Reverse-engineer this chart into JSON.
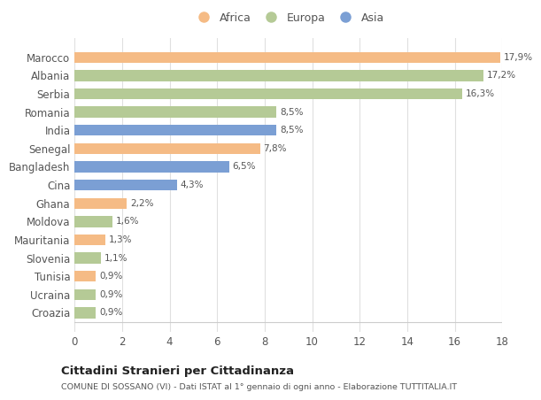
{
  "categories": [
    "Croazia",
    "Ucraina",
    "Tunisia",
    "Slovenia",
    "Mauritania",
    "Moldova",
    "Ghana",
    "Cina",
    "Bangladesh",
    "Senegal",
    "India",
    "Romania",
    "Serbia",
    "Albania",
    "Marocco"
  ],
  "values": [
    0.9,
    0.9,
    0.9,
    1.1,
    1.3,
    1.6,
    2.2,
    4.3,
    6.5,
    7.8,
    8.5,
    8.5,
    16.3,
    17.2,
    17.9
  ],
  "colors": [
    "#b5ca96",
    "#b5ca96",
    "#f5bb85",
    "#b5ca96",
    "#f5bb85",
    "#b5ca96",
    "#f5bb85",
    "#7b9fd4",
    "#7b9fd4",
    "#f5bb85",
    "#7b9fd4",
    "#b5ca96",
    "#b5ca96",
    "#b5ca96",
    "#f5bb85"
  ],
  "labels": [
    "0,9%",
    "0,9%",
    "0,9%",
    "1,1%",
    "1,3%",
    "1,6%",
    "2,2%",
    "4,3%",
    "6,5%",
    "7,8%",
    "8,5%",
    "8,5%",
    "16,3%",
    "17,2%",
    "17,9%"
  ],
  "legend": [
    {
      "label": "Africa",
      "color": "#f5bb85"
    },
    {
      "label": "Europa",
      "color": "#b5ca96"
    },
    {
      "label": "Asia",
      "color": "#7b9fd4"
    }
  ],
  "xlim": [
    0,
    18
  ],
  "xticks": [
    0,
    2,
    4,
    6,
    8,
    10,
    12,
    14,
    16,
    18
  ],
  "title": "Cittadini Stranieri per Cittadinanza",
  "subtitle": "COMUNE DI SOSSANO (VI) - Dati ISTAT al 1° gennaio di ogni anno - Elaborazione TUTTITALIA.IT",
  "bg_color": "#ffffff",
  "grid_color": "#e0e0e0",
  "bar_height": 0.6
}
